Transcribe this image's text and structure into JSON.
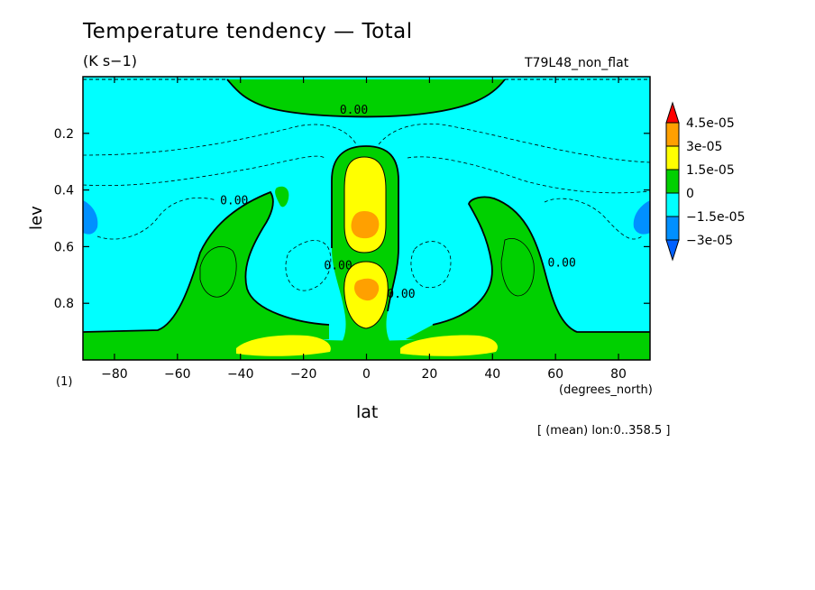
{
  "title": "Temperature tendency — Total",
  "units": "(K s−1)",
  "run_label": "T79L48_non_flat",
  "scale_factor": "(1)",
  "averaging_note": "[ (mean) lon:0..358.5 ]",
  "chart_data": {
    "type": "heatmap",
    "title": "Temperature tendency — Total",
    "xlabel": "lat",
    "xunit": "(degrees_north)",
    "ylabel": "lev",
    "xlim": [
      -90,
      90
    ],
    "ylim": [
      1.0,
      0.0
    ],
    "y_inverted": true,
    "xticks": [
      -80,
      -60,
      -40,
      -20,
      0,
      20,
      40,
      60,
      80
    ],
    "xtick_labels": [
      "−80",
      "−60",
      "−40",
      "−20",
      "0",
      "20",
      "40",
      "60",
      "80"
    ],
    "yticks": [
      0.2,
      0.4,
      0.6,
      0.8
    ],
    "ytick_labels": [
      "0.2",
      "0.4",
      "0.6",
      "0.8"
    ],
    "contour_labels": [
      {
        "text": "0.00",
        "lat": -4,
        "lev": 0.13
      },
      {
        "text": "0.00",
        "lat": -42,
        "lev": 0.45
      },
      {
        "text": "0.00",
        "lat": -9,
        "lev": 0.68
      },
      {
        "text": "0.00",
        "lat": 11,
        "lev": 0.78
      },
      {
        "text": "0.00",
        "lat": 62,
        "lev": 0.67
      }
    ],
    "colorbar": {
      "levels": [
        "4.5e-05",
        "3e-05",
        "1.5e-05",
        "0",
        "−1.5e-05",
        "−3e-05"
      ],
      "colors": [
        "#ff0000",
        "#ffa000",
        "#ffff00",
        "#00d000",
        "#00ffff",
        "#0090ff",
        "#0060ff"
      ]
    },
    "fill_colors": {
      "negative_weak": "#00ffff",
      "negative_mid": "#0090ff",
      "positive_weak": "#00d000",
      "positive_mid": "#ffff00",
      "positive_strong": "#ffa000"
    },
    "regions": [
      {
        "name": "upper-tropospheric positive cap",
        "lat": [
          -44,
          42
        ],
        "lev": [
          0.0,
          0.13
        ],
        "sign": "positive",
        "max": "0 to 1.5e-05"
      },
      {
        "name": "equatorial upper maximum",
        "lat": [
          -10,
          10
        ],
        "lev": [
          0.25,
          0.6
        ],
        "sign": "positive",
        "max": "3e-05 to 4.5e-05"
      },
      {
        "name": "equatorial lower maximum",
        "lat": [
          -6,
          6
        ],
        "lev": [
          0.65,
          0.85
        ],
        "sign": "positive",
        "max": "3e-05 to 4.5e-05"
      },
      {
        "name": "southern mid-latitude band",
        "lat": [
          -60,
          -30
        ],
        "lev": [
          0.4,
          0.9
        ],
        "sign": "positive",
        "max": "0 to 1.5e-05"
      },
      {
        "name": "northern mid-latitude band",
        "lat": [
          35,
          62
        ],
        "lev": [
          0.4,
          0.9
        ],
        "sign": "positive",
        "max": "0 to 1.5e-05"
      },
      {
        "name": "subtropical near-surface maxima",
        "lat": [
          -38,
          40
        ],
        "lev": [
          0.9,
          1.0
        ],
        "sign": "positive",
        "max": "1.5e-05 to 3e-05"
      },
      {
        "name": "polar lobes",
        "lat": [
          -90,
          -86
        ],
        "lev": [
          0.45,
          0.55
        ],
        "sign": "negative",
        "max": "-3e-05 to -1.5e-05"
      },
      {
        "name": "background",
        "lat": [
          -90,
          90
        ],
        "lev": [
          0.0,
          1.0
        ],
        "sign": "negative",
        "max": "-1.5e-05 to 0"
      }
    ]
  }
}
